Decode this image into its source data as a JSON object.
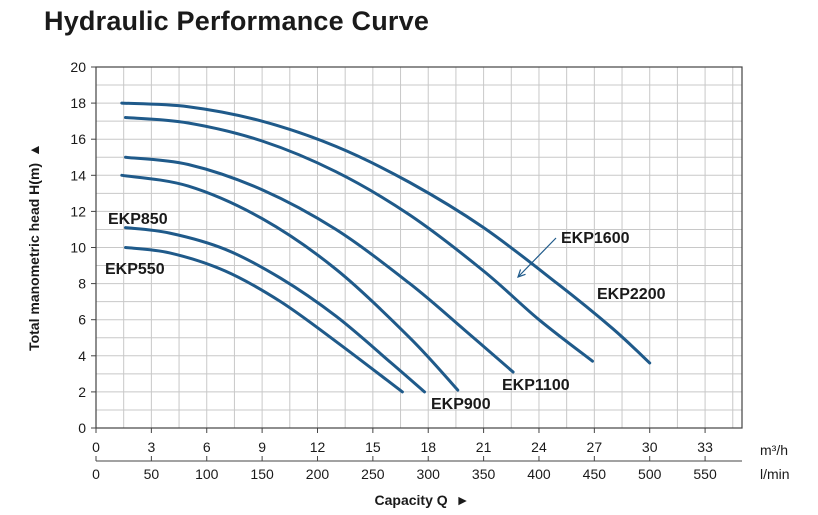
{
  "title": "Hydraulic Performance Curve",
  "chart_data": {
    "type": "line",
    "title": "Hydraulic Performance Curve",
    "xlabel": "Capacity Q",
    "ylabel": "Total manometric head H(m)",
    "xlim": [
      0,
      35
    ],
    "ylim": [
      0,
      20
    ],
    "grid": true,
    "x_unit": "m³/h",
    "x2_unit": "l/min",
    "x_ticks": [
      0,
      3,
      6,
      9,
      12,
      15,
      18,
      21,
      24,
      27,
      30,
      33
    ],
    "x2_ticks": [
      0,
      50,
      100,
      150,
      200,
      250,
      300,
      350,
      400,
      450,
      500,
      550
    ],
    "y_ticks": [
      0,
      2,
      4,
      6,
      8,
      10,
      12,
      14,
      16,
      18,
      20
    ],
    "colors": {
      "curve": "#1f5a8a",
      "grid": "#c8c8c8",
      "axis": "#444444",
      "text": "#1a1a1a"
    },
    "series": [
      {
        "name": "EKP550",
        "x": [
          1.6,
          4,
          7,
          10,
          13,
          16.6
        ],
        "y": [
          10.0,
          9.7,
          8.7,
          7.0,
          4.8,
          2.0
        ]
      },
      {
        "name": "EKP850",
        "x": [
          1.6,
          4,
          7,
          10,
          13,
          16,
          17.8
        ],
        "y": [
          11.1,
          10.8,
          9.9,
          8.3,
          6.2,
          3.6,
          2.0
        ]
      },
      {
        "name": "EKP900",
        "x": [
          1.4,
          5,
          9,
          13,
          17,
          19.6
        ],
        "y": [
          14.0,
          13.4,
          11.6,
          8.8,
          5.0,
          2.1
        ]
      },
      {
        "name": "EKP1100",
        "x": [
          1.6,
          5,
          9,
          13,
          17,
          20,
          22.6
        ],
        "y": [
          15.0,
          14.6,
          13.2,
          11.0,
          8.0,
          5.4,
          3.1
        ]
      },
      {
        "name": "EKP1600",
        "x": [
          1.6,
          5,
          9,
          13,
          17,
          21,
          24,
          26.9
        ],
        "y": [
          17.2,
          16.9,
          15.9,
          14.2,
          11.8,
          8.7,
          6.0,
          3.7
        ]
      },
      {
        "name": "EKP2200",
        "x": [
          1.4,
          5,
          9,
          13,
          17,
          21,
          25,
          28,
          30.0
        ],
        "y": [
          18.0,
          17.8,
          17.0,
          15.6,
          13.6,
          11.1,
          8.0,
          5.5,
          3.6
        ]
      }
    ],
    "labels": [
      {
        "series": "EKP850",
        "text": "EKP850"
      },
      {
        "series": "EKP550",
        "text": "EKP550"
      },
      {
        "series": "EKP900",
        "text": "EKP900"
      },
      {
        "series": "EKP1100",
        "text": "EKP1100"
      },
      {
        "series": "EKP1600",
        "text": "EKP1600"
      },
      {
        "series": "EKP2200",
        "text": "EKP2200"
      }
    ]
  }
}
